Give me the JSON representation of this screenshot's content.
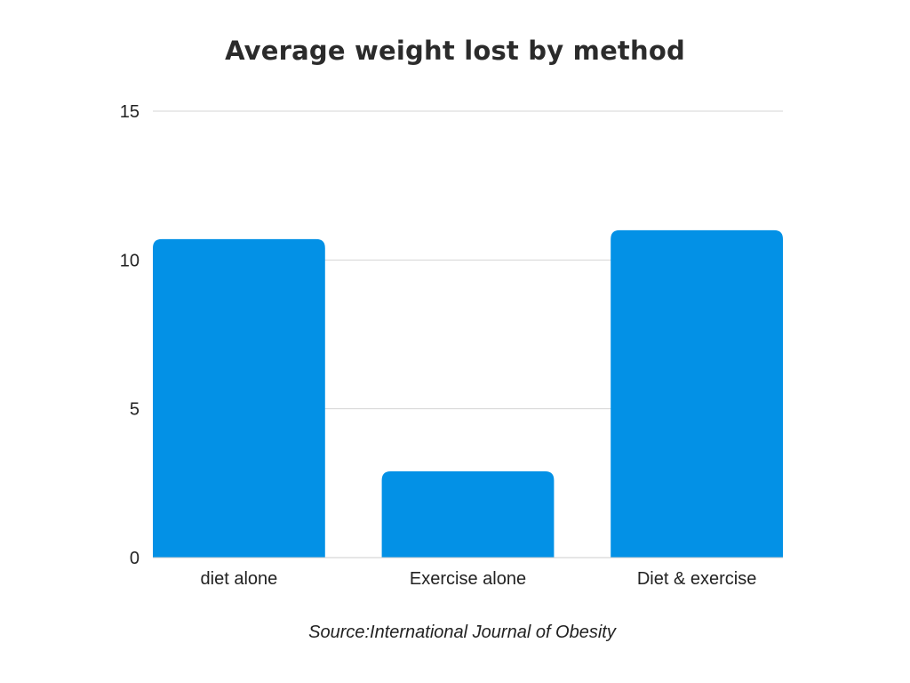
{
  "chart_data": {
    "type": "bar",
    "title": "Average weight lost by method",
    "categories": [
      "diet alone",
      "Exercise alone",
      "Diet & exercise"
    ],
    "values": [
      10.7,
      2.9,
      11.0
    ],
    "xlabel": "",
    "ylabel": "",
    "ylim": [
      0,
      15
    ],
    "yticks": [
      0,
      5,
      10,
      15
    ],
    "grid": true,
    "bar_color": "#0391e6",
    "source": "Source:International Journal of Obesity"
  }
}
